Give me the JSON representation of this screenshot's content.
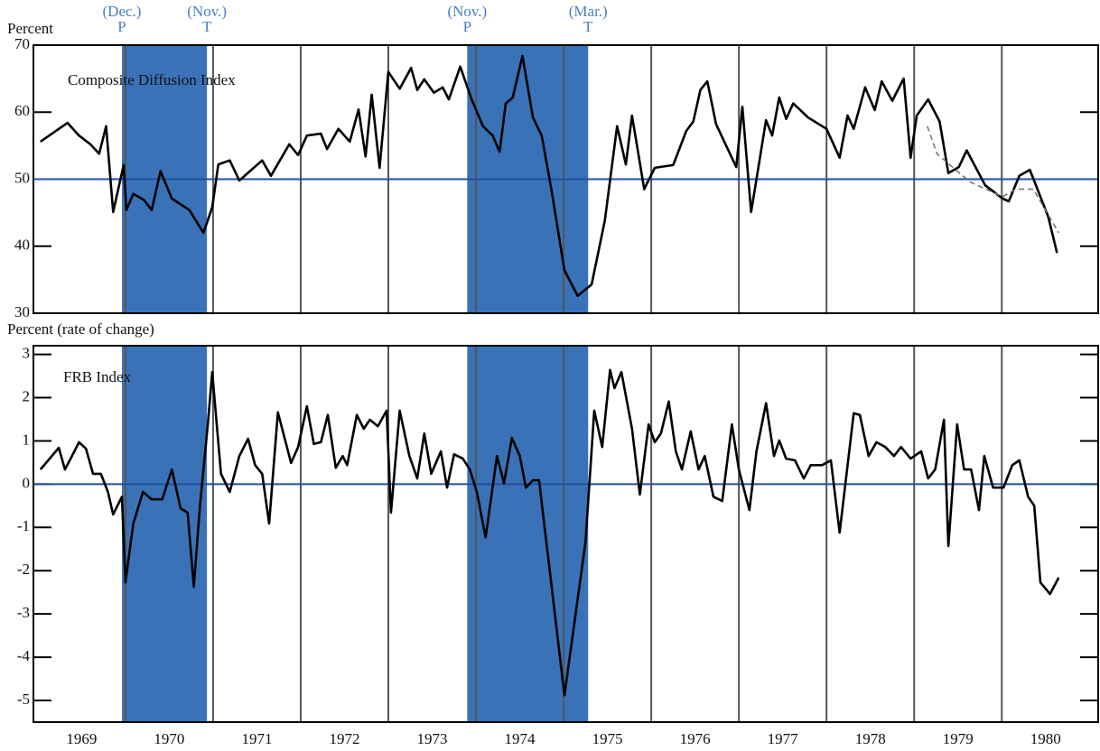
{
  "chart_data": [
    {
      "type": "line",
      "axis_label": "Percent",
      "panel_label": "Composite Diffusion Index",
      "xlim": [
        1968.95,
        1981.1
      ],
      "xticks": [
        1970,
        1971,
        1972,
        1973,
        1974,
        1975,
        1976,
        1977,
        1978,
        1979,
        1980
      ],
      "ylim": [
        30,
        70
      ],
      "yticks": [
        30,
        40,
        50,
        60,
        70
      ],
      "reference_line": 50,
      "reference_color": "#1f4fa0",
      "series": [
        {
          "color": "#000000",
          "dashed": false,
          "x": [
            1969.03,
            1969.34,
            1969.47,
            1969.6,
            1969.7,
            1969.78,
            1969.86,
            1969.98,
            1970.01,
            1970.09,
            1970.21,
            1970.3,
            1970.4,
            1970.53,
            1970.73,
            1970.89,
            1970.99,
            1971.06,
            1971.19,
            1971.3,
            1971.56,
            1971.66,
            1971.87,
            1971.97,
            1972.07,
            1972.23,
            1972.3,
            1972.43,
            1972.56,
            1972.66,
            1972.74,
            1972.81,
            1972.9,
            1973.0,
            1973.13,
            1973.26,
            1973.33,
            1973.41,
            1973.52,
            1973.62,
            1973.69,
            1973.82,
            1973.95,
            1974.08,
            1974.19,
            1974.27,
            1974.34,
            1974.42,
            1974.53,
            1974.65,
            1974.75,
            1974.86,
            1975.01,
            1975.16,
            1975.32,
            1975.47,
            1975.61,
            1975.71,
            1975.78,
            1975.92,
            1976.04,
            1976.25,
            1976.4,
            1976.48,
            1976.56,
            1976.64,
            1976.74,
            1976.97,
            1977.04,
            1977.14,
            1977.31,
            1977.38,
            1977.46,
            1977.54,
            1977.62,
            1977.79,
            1978.0,
            1978.15,
            1978.24,
            1978.31,
            1978.44,
            1978.55,
            1978.63,
            1978.75,
            1978.88,
            1978.96,
            1979.03,
            1979.16,
            1979.29,
            1979.39,
            1979.51,
            1979.6,
            1979.81,
            1980.01,
            1980.08,
            1980.2,
            1980.32,
            1980.53,
            1980.63
          ],
          "values": [
            55.6,
            58.4,
            56.5,
            55.2,
            53.8,
            57.9,
            45.1,
            52.1,
            45.4,
            47.8,
            46.9,
            45.4,
            51.2,
            47.1,
            45.4,
            42,
            45.8,
            52.2,
            52.8,
            49.8,
            52.8,
            50.5,
            55.2,
            53.6,
            56.5,
            56.8,
            54.5,
            57.5,
            55.6,
            60.4,
            53.4,
            62.6,
            51.7,
            66,
            63.5,
            66.6,
            63.3,
            64.9,
            62.9,
            63.7,
            61.9,
            66.8,
            61.9,
            57.9,
            56.5,
            54.1,
            61.3,
            62.2,
            68.4,
            59.2,
            56.5,
            48.5,
            36.4,
            32.6,
            34.3,
            43.8,
            57.9,
            52.2,
            59.5,
            48.5,
            51.7,
            52.1,
            57.2,
            58.6,
            63.3,
            64.6,
            58.2,
            51.8,
            60.8,
            45.1,
            58.8,
            56.5,
            62.2,
            59,
            61.3,
            59.2,
            57.5,
            53.2,
            59.5,
            57.5,
            63.7,
            60.3,
            64.6,
            61.7,
            65,
            53.2,
            59.5,
            61.9,
            58.6,
            50.9,
            51.8,
            54.3,
            49.1,
            47.1,
            46.7,
            50.5,
            51.4,
            44.4,
            39
          ]
        },
        {
          "color": "#777777",
          "dashed": true,
          "x": [
            1979.15,
            1979.26,
            1979.49,
            1979.65,
            1979.82,
            1980.01,
            1980.16,
            1980.36,
            1980.65
          ],
          "values": [
            57.9,
            53.8,
            51.2,
            49.5,
            48.5,
            47.4,
            48.5,
            48.5,
            42
          ]
        }
      ]
    },
    {
      "type": "line",
      "axis_label": "Percent (rate of change)",
      "panel_label": "FRB Index",
      "xlim": [
        1968.95,
        1981.1
      ],
      "xticks": [
        1970,
        1971,
        1972,
        1973,
        1974,
        1975,
        1976,
        1977,
        1978,
        1979,
        1980
      ],
      "ylim": [
        -5.5,
        3.2
      ],
      "yticks": [
        -5,
        -4,
        -3,
        -2,
        -1,
        0,
        1,
        2,
        3
      ],
      "reference_line": 0,
      "reference_color": "#1f4fa0",
      "categories": [
        "1969",
        "1970",
        "1971",
        "1972",
        "1973",
        "1974",
        "1975",
        "1976",
        "1977",
        "1978",
        "1979",
        "1980"
      ],
      "series": [
        {
          "color": "#000000",
          "dashed": false,
          "x": [
            1969.03,
            1969.24,
            1969.31,
            1969.39,
            1969.47,
            1969.55,
            1969.63,
            1969.72,
            1969.8,
            1969.86,
            1969.96,
            1970.0,
            1970.09,
            1970.2,
            1970.3,
            1970.42,
            1970.53,
            1970.63,
            1970.71,
            1970.78,
            1970.85,
            1970.94,
            1970.99,
            1971.09,
            1971.19,
            1971.3,
            1971.4,
            1971.48,
            1971.56,
            1971.64,
            1971.74,
            1971.89,
            1971.97,
            1972.07,
            1972.15,
            1972.23,
            1972.31,
            1972.4,
            1972.48,
            1972.53,
            1972.64,
            1972.72,
            1972.79,
            1972.88,
            1972.98,
            1973.03,
            1973.13,
            1973.24,
            1973.33,
            1973.41,
            1973.49,
            1973.6,
            1973.67,
            1973.75,
            1973.85,
            1973.93,
            1974.01,
            1974.11,
            1974.24,
            1974.32,
            1974.41,
            1974.5,
            1974.57,
            1974.65,
            1974.72,
            1975.01,
            1975.25,
            1975.35,
            1975.44,
            1975.53,
            1975.58,
            1975.66,
            1975.78,
            1975.87,
            1975.97,
            1976.04,
            1976.11,
            1976.2,
            1976.28,
            1976.35,
            1976.45,
            1976.54,
            1976.61,
            1976.71,
            1976.81,
            1976.92,
            1977.0,
            1977.12,
            1977.2,
            1977.31,
            1977.4,
            1977.46,
            1977.54,
            1977.64,
            1977.74,
            1977.82,
            1977.95,
            1978.05,
            1978.15,
            1978.31,
            1978.38,
            1978.48,
            1978.57,
            1978.67,
            1978.77,
            1978.85,
            1978.96,
            1979.08,
            1979.16,
            1979.24,
            1979.34,
            1979.39,
            1979.49,
            1979.57,
            1979.65,
            1979.74,
            1979.8,
            1979.9,
            1980.02,
            1980.12,
            1980.2,
            1980.3,
            1980.37,
            1980.44,
            1980.55,
            1980.65
          ],
          "values": [
            0.34,
            0.84,
            0.34,
            0.65,
            0.97,
            0.82,
            0.24,
            0.24,
            -0.18,
            -0.7,
            -0.29,
            -2.27,
            -0.91,
            -0.18,
            -0.35,
            -0.35,
            0.34,
            -0.56,
            -0.66,
            -2.37,
            -0.5,
            1.38,
            2.59,
            0.24,
            -0.18,
            0.65,
            1.05,
            0.44,
            0.24,
            -0.91,
            1.66,
            0.49,
            0.86,
            1.8,
            0.93,
            0.97,
            1.6,
            0.38,
            0.65,
            0.44,
            1.6,
            1.28,
            1.49,
            1.34,
            1.7,
            -0.66,
            1.7,
            0.65,
            0.13,
            1.17,
            0.24,
            0.76,
            -0.08,
            0.69,
            0.59,
            0.34,
            -0.18,
            -1.23,
            0.65,
            0.02,
            1.07,
            0.65,
            -0.08,
            0.09,
            0.09,
            -4.88,
            -1.34,
            1.7,
            0.86,
            2.64,
            2.22,
            2.59,
            1.28,
            -0.24,
            1.38,
            0.97,
            1.17,
            1.91,
            0.76,
            0.34,
            1.22,
            0.34,
            0.65,
            -0.29,
            -0.39,
            1.38,
            0.34,
            -0.6,
            0.76,
            1.87,
            0.65,
            1.01,
            0.59,
            0.55,
            0.13,
            0.44,
            0.44,
            0.55,
            -1.12,
            1.64,
            1.6,
            0.65,
            0.97,
            0.86,
            0.65,
            0.86,
            0.59,
            0.76,
            0.13,
            0.34,
            1.49,
            -1.43,
            1.38,
            0.34,
            0.34,
            -0.6,
            0.65,
            -0.08,
            -0.08,
            0.44,
            0.55,
            -0.29,
            -0.5,
            -2.27,
            -2.54,
            -2.16
          ]
        }
      ]
    }
  ],
  "recessions": {
    "color": "#3a72b8",
    "periods": [
      {
        "start": 1969.96,
        "end": 1970.93,
        "start_month": "(Dec.)",
        "start_letter": "P",
        "end_month": "(Nov.)",
        "end_letter": "T"
      },
      {
        "start": 1973.9,
        "end": 1975.28,
        "start_month": "(Nov.)",
        "start_letter": "P",
        "end_month": "(Mar.)",
        "end_letter": "T"
      }
    ]
  }
}
